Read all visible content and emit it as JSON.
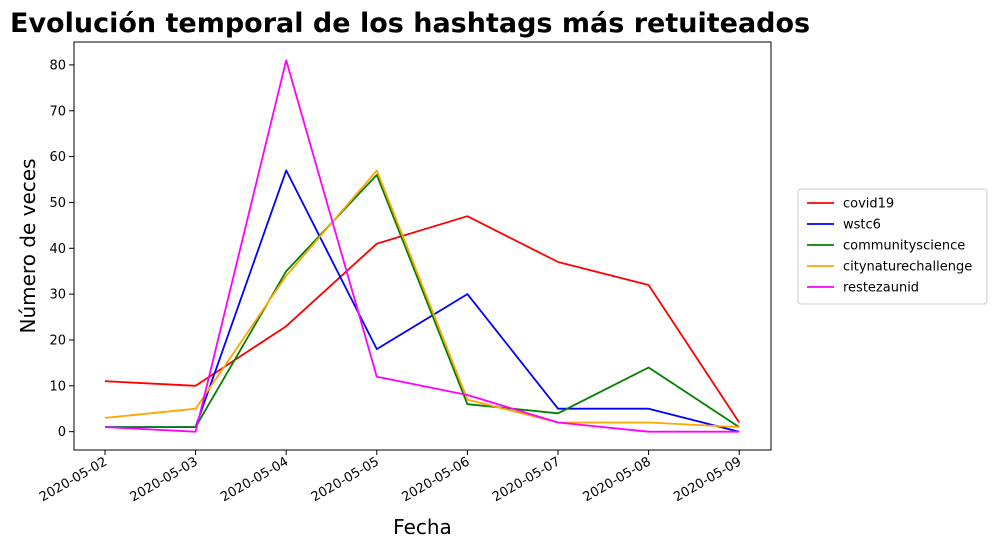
{
  "chart_data": {
    "type": "line",
    "title": "Evolución temporal de los hashtags más retuiteados",
    "xlabel": "Fecha",
    "ylabel": "Número de veces",
    "x": [
      "2020-05-02",
      "2020-05-03",
      "2020-05-04",
      "2020-05-05",
      "2020-05-06",
      "2020-05-07",
      "2020-05-08",
      "2020-05-09"
    ],
    "ylim": [
      -4,
      85
    ],
    "yticks": [
      0,
      10,
      20,
      30,
      40,
      50,
      60,
      70,
      80
    ],
    "grid": false,
    "legend_position": "right",
    "series": [
      {
        "name": "covid19",
        "color": "#ff0000",
        "values": [
          11,
          10,
          23,
          41,
          47,
          37,
          32,
          2
        ]
      },
      {
        "name": "wstc6",
        "color": "#0000ff",
        "values": [
          1,
          1,
          57,
          18,
          30,
          5,
          5,
          0
        ]
      },
      {
        "name": "communityscience",
        "color": "#008000",
        "values": [
          1,
          1,
          35,
          56,
          6,
          4,
          14,
          1
        ]
      },
      {
        "name": "citynaturechallenge",
        "color": "#ffa500",
        "values": [
          3,
          5,
          34,
          57,
          7,
          2,
          2,
          1
        ]
      },
      {
        "name": "restezaunid",
        "color": "#ff00ff",
        "values": [
          1,
          0,
          81,
          12,
          8,
          2,
          0,
          0
        ]
      }
    ]
  }
}
